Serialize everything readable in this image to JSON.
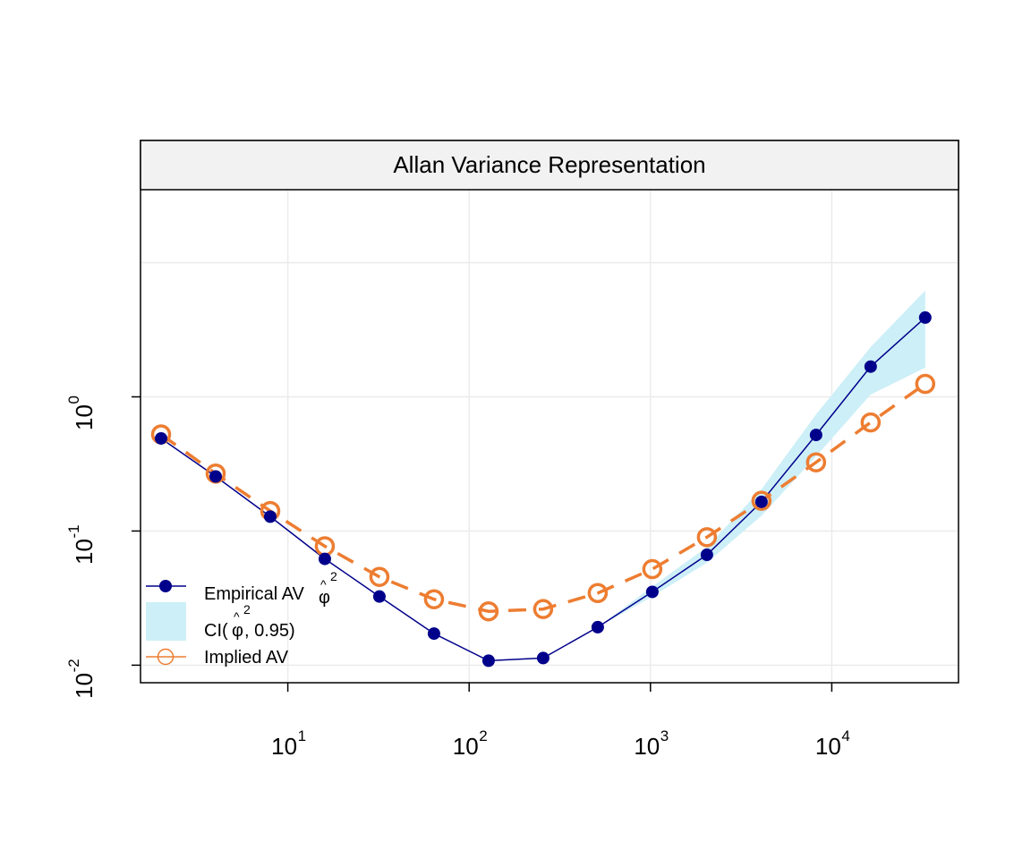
{
  "chart_data": {
    "type": "line",
    "title": "Allan Variance Representation",
    "xscale": "log10",
    "yscale": "log10",
    "xlim": [
      1.54,
      50000
    ],
    "ylim": [
      0.0074,
      35
    ],
    "grid": true,
    "x_ticks": [
      {
        "value": 10,
        "base": "10",
        "exp": "1"
      },
      {
        "value": 100,
        "base": "10",
        "exp": "2"
      },
      {
        "value": 1000,
        "base": "10",
        "exp": "3"
      },
      {
        "value": 10000,
        "base": "10",
        "exp": "4"
      }
    ],
    "y_ticks": [
      {
        "value": 0.01,
        "base": "10",
        "exp": "-2"
      },
      {
        "value": 0.1,
        "base": "10",
        "exp": "-1"
      },
      {
        "value": 1,
        "base": "10",
        "exp": "0"
      }
    ],
    "x": [
      2,
      4,
      8,
      16,
      32,
      64,
      128,
      256,
      512,
      1024,
      2048,
      4096,
      8192,
      16384,
      32768
    ],
    "series": [
      {
        "name": "Empirical AV",
        "style": "line-filled-dots",
        "color": "#00008B",
        "values": [
          0.49,
          0.255,
          0.128,
          0.062,
          0.0325,
          0.0172,
          0.0108,
          0.0113,
          0.0192,
          0.0352,
          0.0665,
          0.165,
          0.52,
          1.68,
          3.9
        ]
      },
      {
        "name": "Implied AV",
        "style": "dashed-open-circles",
        "color": "#ED7D31",
        "values": [
          0.525,
          0.268,
          0.141,
          0.077,
          0.0455,
          0.031,
          0.0252,
          0.0262,
          0.0345,
          0.052,
          0.09,
          0.168,
          0.325,
          0.645,
          1.25
        ]
      }
    ],
    "ci_band": {
      "name": "CI 0.95",
      "color": "#CDEFF7",
      "lower": [
        0.49,
        0.255,
        0.128,
        0.062,
        0.0325,
        0.0172,
        0.0108,
        0.0113,
        0.0192,
        0.0325,
        0.058,
        0.13,
        0.36,
        1.04,
        1.65
      ],
      "upper": [
        0.49,
        0.255,
        0.128,
        0.062,
        0.0325,
        0.0172,
        0.0108,
        0.0113,
        0.0192,
        0.0385,
        0.076,
        0.205,
        0.74,
        2.35,
        6.2
      ]
    },
    "legend": {
      "position": "bottom-left",
      "empirical": {
        "text": "Empirical AV ",
        "phi": "φ",
        "hat": "^",
        "sup": "2"
      },
      "ci": {
        "prefix": "CI(",
        "phi": "φ",
        "hat": "^",
        "sup": "2",
        "suffix": ", 0.95)"
      },
      "implied": {
        "text": "Implied AV"
      }
    }
  }
}
